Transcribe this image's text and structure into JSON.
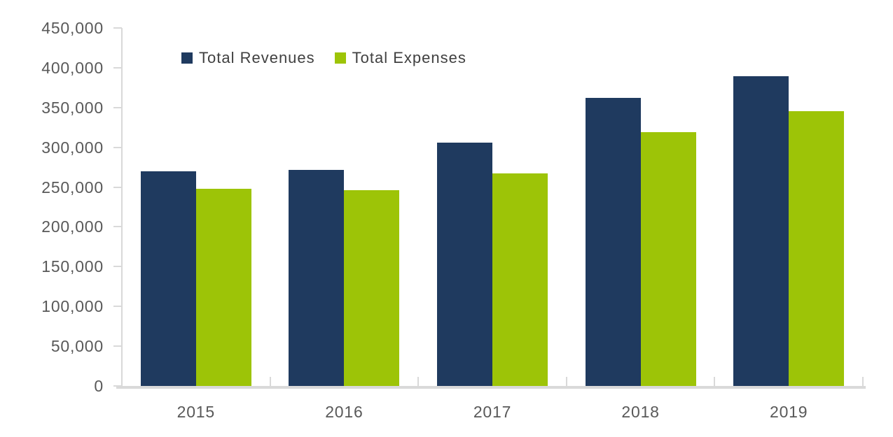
{
  "chart_data": {
    "type": "bar",
    "title": "",
    "xlabel": "",
    "ylabel": "",
    "categories": [
      "2015",
      "2016",
      "2017",
      "2018",
      "2019"
    ],
    "series": [
      {
        "name": "Total Revenues",
        "color": "#1f3a5f",
        "values": [
          270000,
          272000,
          306000,
          362000,
          389000
        ]
      },
      {
        "name": "Total Expenses",
        "color": "#9dc407",
        "values": [
          248000,
          246000,
          267000,
          319000,
          345000
        ]
      }
    ],
    "ylim": [
      0,
      450000
    ],
    "ytick_step": 50000,
    "ytick_labels": [
      "0",
      "50,000",
      "100,000",
      "150,000",
      "200,000",
      "250,000",
      "300,000",
      "350,000",
      "400,000",
      "450,000"
    ],
    "grid": false,
    "legend_position": "top-left-inside",
    "axis_color": "#d9d9d9",
    "tick_label_color": "#595959",
    "legend_text_color": "#404040",
    "background_color": "#ffffff"
  }
}
